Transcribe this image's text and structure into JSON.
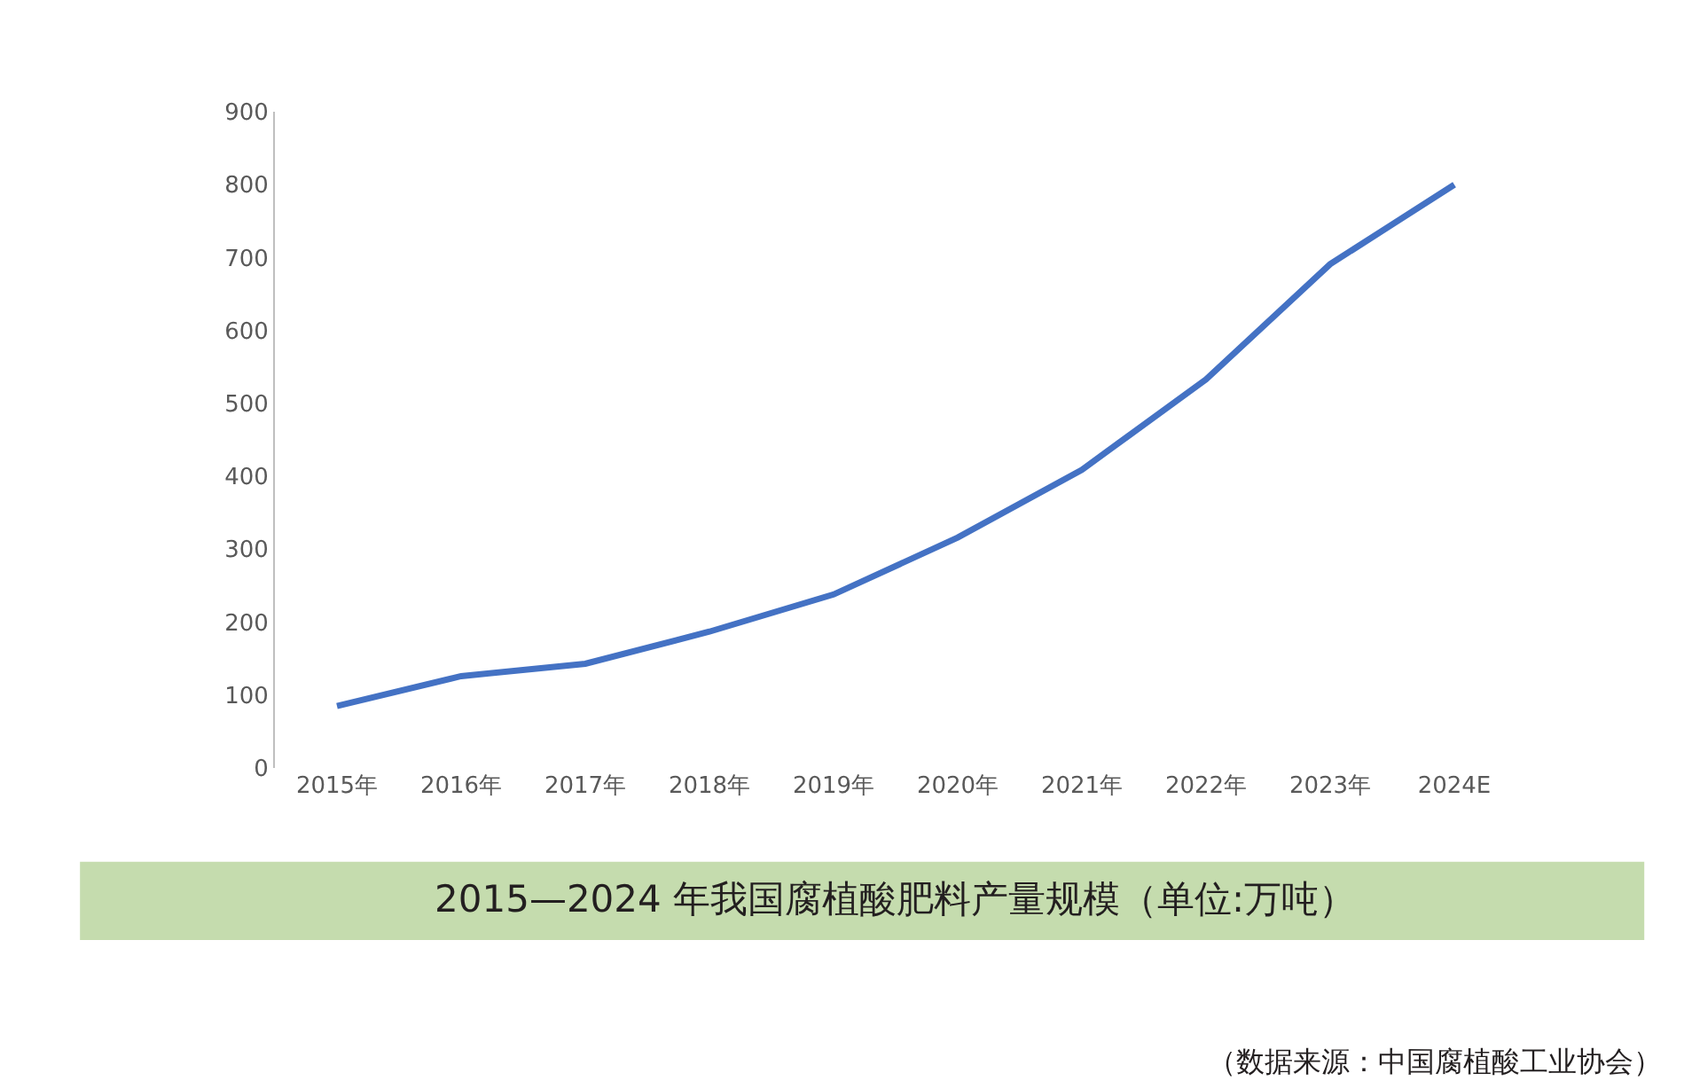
{
  "chart_data": {
    "type": "line",
    "title": "2015—2024 年我国腐植酸肥料产量规模（单位:万吨）",
    "categories": [
      "2015年",
      "2016年",
      "2017年",
      "2018年",
      "2019年",
      "2020年",
      "2021年",
      "2022年",
      "2023年",
      "2024E"
    ],
    "series": [
      {
        "color": "#4472c4",
        "values": [
          85,
          126,
          143,
          187,
          238,
          316,
          409,
          533,
          691,
          800
        ]
      }
    ],
    "ylim": [
      0,
      900
    ],
    "yticks": [
      0,
      100,
      200,
      300,
      400,
      500,
      600,
      700,
      800,
      900
    ],
    "legend": false,
    "marker": "none",
    "line_style": "solid",
    "annotations": [
      "（数据来源：中国腐植酸工业协会）"
    ]
  }
}
